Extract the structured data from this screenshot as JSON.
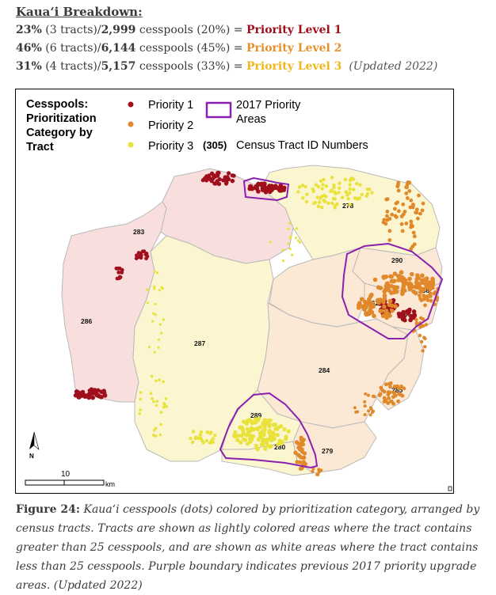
{
  "header": {
    "title": "Kaua‘i Breakdown:",
    "rows": [
      {
        "pct": "23%",
        "tracts": " (3 tracts)/",
        "count": "2,999",
        "rest": " cesspools (20%) = ",
        "level": "Priority Level 1",
        "note": ""
      },
      {
        "pct": "46%",
        "tracts": " (6 tracts)/",
        "count": "6,144",
        "rest": " cesspools (45%) = ",
        "level": "Priority Level 2",
        "note": ""
      },
      {
        "pct": "31%",
        "tracts": " (4 tracts)/",
        "count": "5,157",
        "rest": " cesspools (33%) = ",
        "level": "Priority Level 3",
        "note": "(Updated 2022)"
      }
    ]
  },
  "legend": {
    "title_lines": [
      "Cesspools:",
      "Prioritization",
      "Category by",
      "Tract"
    ],
    "priority1": "Priority 1",
    "priority2": "Priority 2",
    "priority3": "Priority 3",
    "areas_line1": "2017 Priority",
    "areas_line2": "Areas",
    "tract_id_code": "(305)",
    "tract_id_label": "Census Tract ID Numbers"
  },
  "colors": {
    "priority1": "#a00f1c",
    "priority2": "#e0882a",
    "priority3": "#e8e23a",
    "area_outline": "#8a1fb0",
    "tract_pink": "#f9dede",
    "tract_yellow": "#fbf6cf",
    "tract_peach": "#fbe9d6"
  },
  "map": {
    "tract_labels": [
      "278",
      "283",
      "290",
      "288",
      "262",
      "281",
      "286",
      "287",
      "284",
      "285",
      "289",
      "280",
      "279"
    ],
    "north": "N",
    "scale_value": "10",
    "scale_unit": "km"
  },
  "caption": {
    "label": "Figure 24:",
    "text": " Kaua‘i cesspools (dots) colored by prioritization category, arranged by census tracts. Tracts are shown as lightly colored areas where the tract contains greater than 25 cesspools, and are shown as white areas where the tract contains less than 25 cesspools. Purple boundary indicates previous 2017 priority upgrade areas. (Updated 2022)"
  }
}
